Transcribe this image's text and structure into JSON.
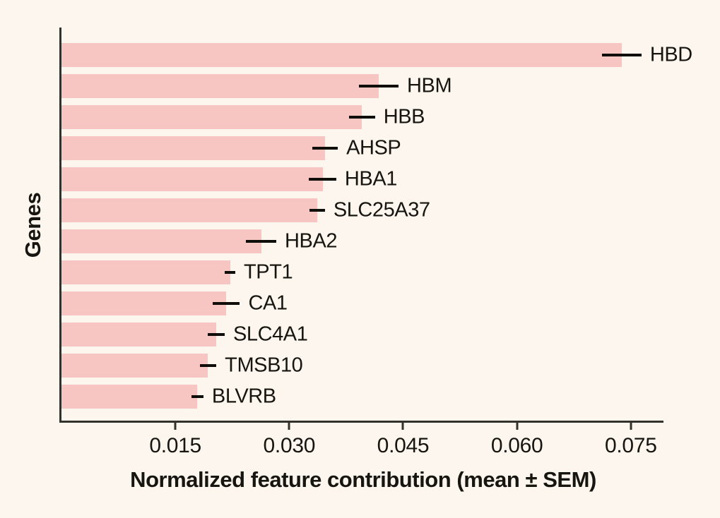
{
  "chart_data": {
    "type": "bar",
    "orientation": "horizontal",
    "title": "",
    "xlabel": "Normalized feature contribution (mean ± SEM)",
    "ylabel": "Genes",
    "categories": [
      "HBD",
      "HBM",
      "HBB",
      "AHSP",
      "HBA1",
      "SLC25A37",
      "HBA2",
      "TPT1",
      "CA1",
      "SLC4A1",
      "TMSB10",
      "BLVRB"
    ],
    "values": [
      0.0738,
      0.0418,
      0.0396,
      0.0347,
      0.0344,
      0.0337,
      0.0263,
      0.0222,
      0.0217,
      0.0204,
      0.0193,
      0.0179
    ],
    "sems": [
      0.0026,
      0.0026,
      0.0017,
      0.0017,
      0.0018,
      0.001,
      0.002,
      0.0007,
      0.0018,
      0.0011,
      0.0011,
      0.0008
    ],
    "xticks": [
      0.015,
      0.03,
      0.045,
      0.06,
      0.075
    ],
    "xtick_labels": [
      "0.015",
      "0.030",
      "0.045",
      "0.060",
      "0.075"
    ],
    "xlim": [
      0,
      0.0793
    ],
    "grid": false,
    "legend": null,
    "error_bar_style": "horizontal-line-no-caps",
    "colors": {
      "bar": "#f8c6c2",
      "error_bar": "#0f0e0b",
      "background": "#fdf6ee",
      "axis": "#33312b",
      "text": "#17150f"
    }
  }
}
